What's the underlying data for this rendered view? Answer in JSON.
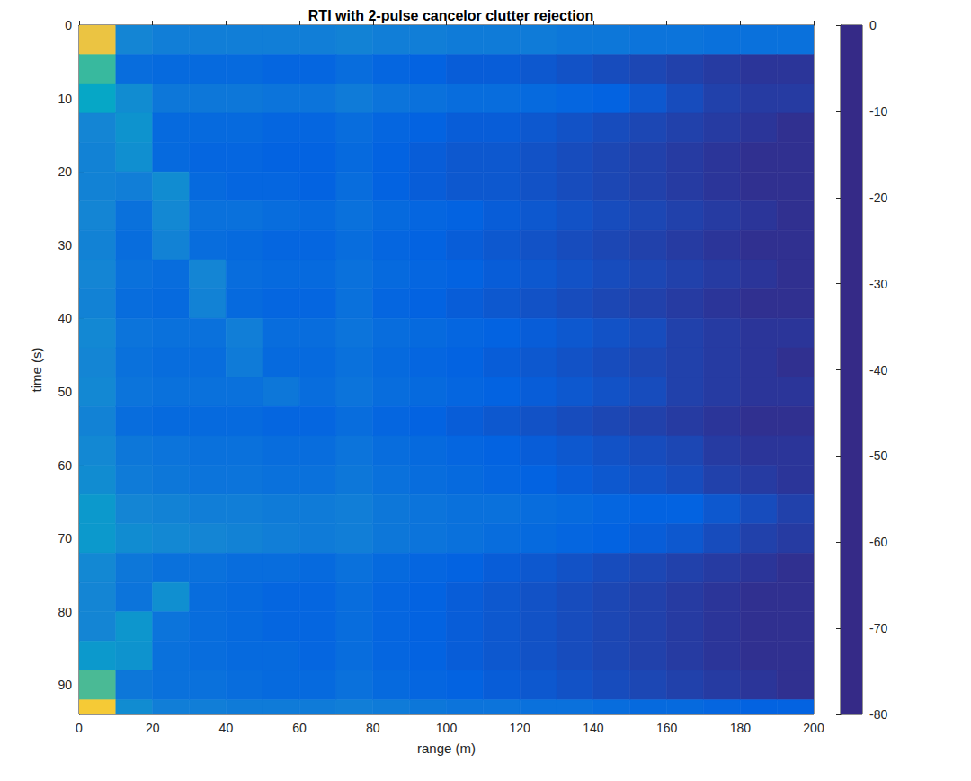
{
  "chart_data": {
    "type": "heatmap",
    "title": "RTI with 2-pulse cancelor clutter rejection",
    "x_label": "range (m)",
    "y_label": "time (s)",
    "xlim": [
      0,
      200
    ],
    "xticks": [
      0,
      20,
      40,
      60,
      80,
      100,
      120,
      140,
      160,
      180,
      200
    ],
    "ylim": [
      0,
      94
    ],
    "yticks": [
      0,
      10,
      20,
      30,
      40,
      50,
      60,
      70,
      80,
      90
    ],
    "x_edges": [
      0,
      10,
      20,
      30,
      40,
      50,
      60,
      70,
      80,
      90,
      100,
      110,
      120,
      130,
      140,
      150,
      160,
      170,
      180,
      190,
      200
    ],
    "y_edges": [
      0,
      4,
      8,
      12,
      16,
      20,
      24,
      28,
      32,
      36,
      40,
      44,
      48,
      52,
      56,
      60,
      64,
      68,
      72,
      76,
      80,
      84,
      88,
      92,
      94
    ],
    "cells": [
      [
        -15,
        -60,
        -62,
        -62,
        -62,
        -62,
        -62,
        -61,
        -62,
        -62,
        -63,
        -63,
        -63,
        -64,
        -64,
        -65,
        -65,
        -66,
        -66,
        -66
      ],
      [
        -40,
        -67,
        -68,
        -68,
        -68,
        -69,
        -69,
        -67,
        -69,
        -70,
        -71,
        -71,
        -72,
        -73,
        -74,
        -75,
        -76,
        -77,
        -78,
        -78
      ],
      [
        -50,
        -58,
        -64,
        -64,
        -64,
        -65,
        -65,
        -63,
        -65,
        -66,
        -67,
        -67,
        -68,
        -69,
        -70,
        -72,
        -74,
        -76,
        -77,
        -77
      ],
      [
        -60,
        -56,
        -68,
        -68,
        -68,
        -69,
        -69,
        -67,
        -69,
        -70,
        -71,
        -71,
        -72,
        -73,
        -74,
        -75,
        -76,
        -77,
        -78,
        -79
      ],
      [
        -61,
        -57,
        -68,
        -69,
        -69,
        -70,
        -70,
        -68,
        -70,
        -71,
        -72,
        -72,
        -73,
        -74,
        -75,
        -76,
        -77,
        -78,
        -79,
        -79
      ],
      [
        -61,
        -62,
        -58,
        -68,
        -69,
        -69,
        -70,
        -67,
        -70,
        -71,
        -72,
        -72,
        -73,
        -74,
        -75,
        -76,
        -77,
        -78,
        -79,
        -79
      ],
      [
        -60,
        -66,
        -59,
        -66,
        -66,
        -67,
        -68,
        -66,
        -68,
        -69,
        -70,
        -71,
        -72,
        -73,
        -74,
        -75,
        -76,
        -77,
        -78,
        -79
      ],
      [
        -61,
        -67,
        -61,
        -67,
        -68,
        -69,
        -69,
        -67,
        -69,
        -70,
        -71,
        -72,
        -73,
        -74,
        -75,
        -76,
        -77,
        -78,
        -79,
        -79
      ],
      [
        -60,
        -66,
        -67,
        -60,
        -67,
        -68,
        -68,
        -66,
        -68,
        -69,
        -70,
        -71,
        -72,
        -73,
        -74,
        -75,
        -76,
        -77,
        -78,
        -79
      ],
      [
        -61,
        -67,
        -68,
        -61,
        -68,
        -69,
        -69,
        -66,
        -69,
        -70,
        -71,
        -72,
        -73,
        -74,
        -75,
        -76,
        -77,
        -78,
        -79,
        -79
      ],
      [
        -59,
        -65,
        -66,
        -66,
        -62,
        -67,
        -67,
        -65,
        -67,
        -68,
        -69,
        -70,
        -71,
        -72,
        -73,
        -74,
        -76,
        -77,
        -78,
        -78
      ],
      [
        -60,
        -66,
        -67,
        -67,
        -63,
        -68,
        -68,
        -66,
        -68,
        -69,
        -70,
        -71,
        -72,
        -73,
        -74,
        -75,
        -76,
        -77,
        -78,
        -79
      ],
      [
        -59,
        -65,
        -66,
        -66,
        -66,
        -64,
        -67,
        -65,
        -67,
        -68,
        -69,
        -70,
        -71,
        -72,
        -73,
        -74,
        -76,
        -77,
        -78,
        -78
      ],
      [
        -61,
        -67,
        -68,
        -68,
        -68,
        -69,
        -69,
        -67,
        -69,
        -70,
        -71,
        -72,
        -73,
        -74,
        -75,
        -76,
        -77,
        -78,
        -79,
        -79
      ],
      [
        -59,
        -64,
        -65,
        -66,
        -66,
        -67,
        -67,
        -65,
        -67,
        -68,
        -69,
        -70,
        -71,
        -72,
        -73,
        -74,
        -75,
        -77,
        -78,
        -78
      ],
      [
        -58,
        -63,
        -64,
        -65,
        -65,
        -66,
        -66,
        -64,
        -66,
        -67,
        -68,
        -69,
        -70,
        -71,
        -72,
        -73,
        -74,
        -76,
        -77,
        -78
      ],
      [
        -54,
        -60,
        -61,
        -62,
        -62,
        -63,
        -63,
        -62,
        -64,
        -65,
        -66,
        -66,
        -67,
        -68,
        -69,
        -70,
        -70,
        -72,
        -74,
        -76
      ],
      [
        -54,
        -58,
        -59,
        -60,
        -61,
        -62,
        -63,
        -62,
        -64,
        -65,
        -66,
        -67,
        -68,
        -69,
        -70,
        -71,
        -72,
        -74,
        -76,
        -77
      ],
      [
        -59,
        -64,
        -66,
        -66,
        -67,
        -67,
        -68,
        -66,
        -68,
        -69,
        -70,
        -71,
        -72,
        -73,
        -74,
        -75,
        -76,
        -77,
        -78,
        -79
      ],
      [
        -60,
        -65,
        -57,
        -67,
        -68,
        -69,
        -69,
        -67,
        -69,
        -70,
        -71,
        -72,
        -73,
        -74,
        -75,
        -76,
        -77,
        -78,
        -79,
        -79
      ],
      [
        -60,
        -55,
        -65,
        -67,
        -68,
        -69,
        -69,
        -67,
        -69,
        -70,
        -71,
        -72,
        -73,
        -74,
        -75,
        -76,
        -77,
        -78,
        -79,
        -79
      ],
      [
        -54,
        -56,
        -66,
        -67,
        -68,
        -68,
        -69,
        -67,
        -69,
        -70,
        -71,
        -72,
        -73,
        -74,
        -75,
        -76,
        -77,
        -78,
        -79,
        -79
      ],
      [
        -38,
        -64,
        -66,
        -66,
        -67,
        -68,
        -68,
        -66,
        -68,
        -69,
        -70,
        -71,
        -72,
        -73,
        -74,
        -75,
        -76,
        -77,
        -78,
        -79
      ],
      [
        -12,
        -58,
        -62,
        -62,
        -63,
        -63,
        -63,
        -62,
        -63,
        -64,
        -65,
        -65,
        -66,
        -66,
        -67,
        -68,
        -68,
        -69,
        -70,
        -70
      ]
    ],
    "colorbar": {
      "range": [
        -80,
        0
      ],
      "ticks": [
        -80,
        -70,
        -60,
        -50,
        -40,
        -30,
        -20,
        -10,
        0
      ]
    }
  }
}
